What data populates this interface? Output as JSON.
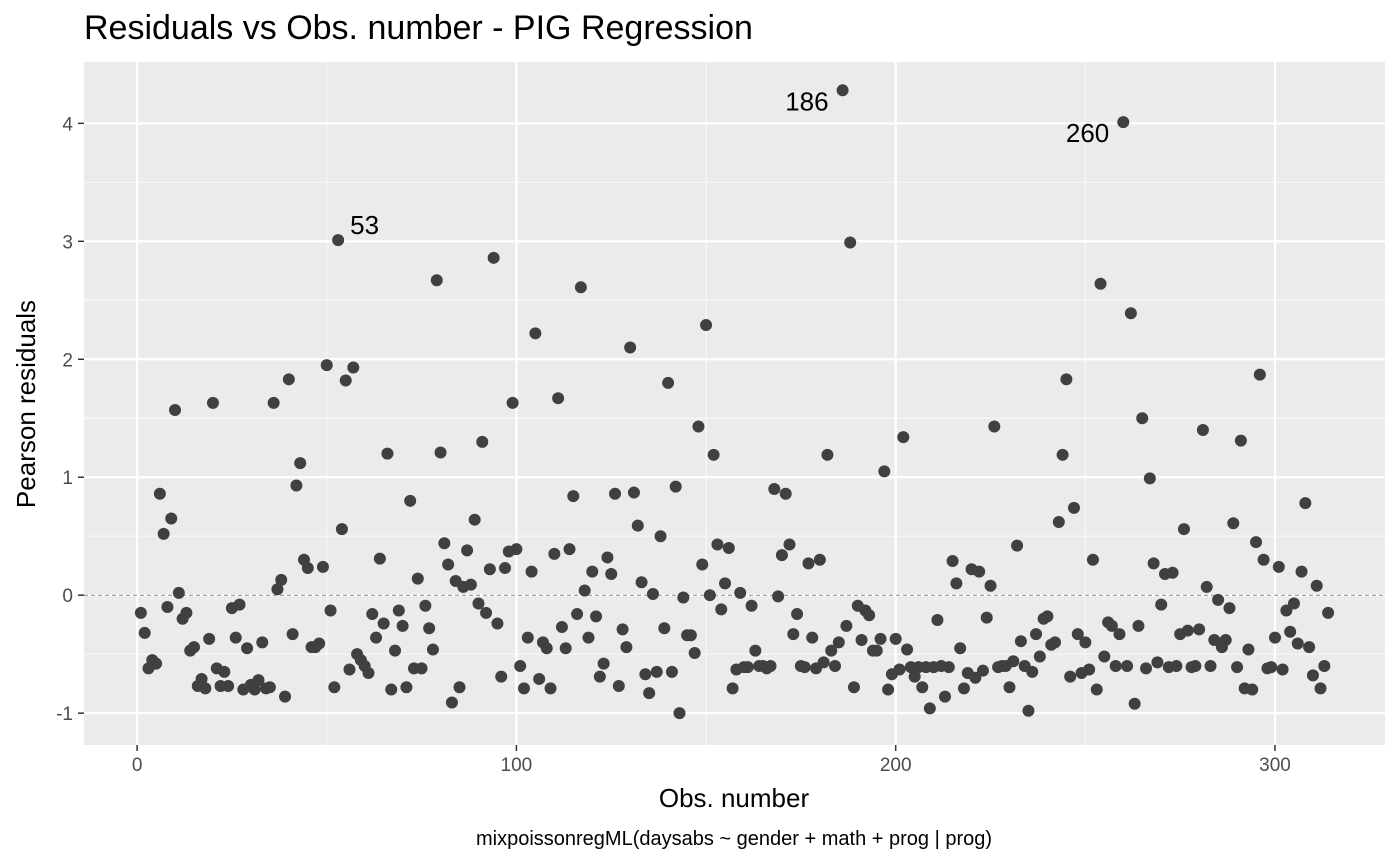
{
  "chart_data": {
    "type": "scatter",
    "title": "Residuals vs Obs. number - PIG Regression",
    "xlabel": "Obs. number",
    "ylabel": "Pearson residuals",
    "caption": "mixpoissonregML(daysabs ~ gender + math + prog | prog)",
    "xlim": [
      -14,
      329
    ],
    "ylim": [
      -1.27,
      4.52
    ],
    "x_ticks": [
      0,
      100,
      200,
      300
    ],
    "x_tick_labels": [
      "0",
      "100",
      "200",
      "300"
    ],
    "y_ticks": [
      -1,
      0,
      1,
      2,
      3,
      4
    ],
    "y_tick_labels": [
      "-1",
      "0",
      "1",
      "2",
      "3",
      "4"
    ],
    "reference_line_y": 0,
    "grid": true,
    "colors": {
      "panel": "#ebebeb",
      "grid_major": "#ffffff",
      "grid_minor": "#f7f7f7",
      "point": "#404040",
      "reference_line": "#888888"
    },
    "annotations": [
      {
        "label": "53",
        "x": 53,
        "y": 3.01
      },
      {
        "label": "186",
        "x": 186,
        "y": 4.28
      },
      {
        "label": "260",
        "x": 260,
        "y": 4.01
      }
    ],
    "points": [
      [
        1,
        -0.15
      ],
      [
        2,
        -0.32
      ],
      [
        3,
        -0.62
      ],
      [
        4,
        -0.55
      ],
      [
        5,
        -0.58
      ],
      [
        6,
        0.86
      ],
      [
        7,
        0.52
      ],
      [
        8,
        -0.1
      ],
      [
        9,
        0.65
      ],
      [
        10,
        1.57
      ],
      [
        11,
        0.02
      ],
      [
        12,
        -0.2
      ],
      [
        13,
        -0.15
      ],
      [
        14,
        -0.47
      ],
      [
        15,
        -0.44
      ],
      [
        16,
        -0.77
      ],
      [
        17,
        -0.71
      ],
      [
        18,
        -0.79
      ],
      [
        19,
        -0.37
      ],
      [
        20,
        1.63
      ],
      [
        21,
        -0.62
      ],
      [
        22,
        -0.77
      ],
      [
        23,
        -0.65
      ],
      [
        24,
        -0.77
      ],
      [
        25,
        -0.11
      ],
      [
        26,
        -0.36
      ],
      [
        27,
        -0.08
      ],
      [
        28,
        -0.8
      ],
      [
        29,
        -0.45
      ],
      [
        30,
        -0.76
      ],
      [
        31,
        -0.8
      ],
      [
        32,
        -0.72
      ],
      [
        33,
        -0.4
      ],
      [
        34,
        -0.79
      ],
      [
        35,
        -0.78
      ],
      [
        36,
        1.63
      ],
      [
        37,
        0.05
      ],
      [
        38,
        0.13
      ],
      [
        39,
        -0.86
      ],
      [
        40,
        1.83
      ],
      [
        41,
        -0.33
      ],
      [
        42,
        0.93
      ],
      [
        43,
        1.12
      ],
      [
        44,
        0.3
      ],
      [
        45,
        0.23
      ],
      [
        46,
        -0.44
      ],
      [
        47,
        -0.44
      ],
      [
        48,
        -0.41
      ],
      [
        49,
        0.24
      ],
      [
        50,
        1.95
      ],
      [
        51,
        -0.13
      ],
      [
        52,
        -0.78
      ],
      [
        53,
        3.01
      ],
      [
        54,
        0.56
      ],
      [
        55,
        1.82
      ],
      [
        56,
        -0.63
      ],
      [
        57,
        1.93
      ],
      [
        58,
        -0.5
      ],
      [
        59,
        -0.55
      ],
      [
        60,
        -0.6
      ],
      [
        61,
        -0.66
      ],
      [
        62,
        -0.16
      ],
      [
        63,
        -0.36
      ],
      [
        64,
        0.31
      ],
      [
        65,
        -0.24
      ],
      [
        66,
        1.2
      ],
      [
        67,
        -0.8
      ],
      [
        68,
        -0.47
      ],
      [
        69,
        -0.13
      ],
      [
        70,
        -0.26
      ],
      [
        71,
        -0.78
      ],
      [
        72,
        0.8
      ],
      [
        73,
        -0.62
      ],
      [
        74,
        0.14
      ],
      [
        75,
        -0.62
      ],
      [
        76,
        -0.09
      ],
      [
        77,
        -0.28
      ],
      [
        78,
        -0.46
      ],
      [
        79,
        2.67
      ],
      [
        80,
        1.21
      ],
      [
        81,
        0.44
      ],
      [
        82,
        0.26
      ],
      [
        83,
        -0.91
      ],
      [
        84,
        0.12
      ],
      [
        85,
        -0.78
      ],
      [
        86,
        0.07
      ],
      [
        87,
        0.38
      ],
      [
        88,
        0.09
      ],
      [
        89,
        0.64
      ],
      [
        90,
        -0.07
      ],
      [
        91,
        1.3
      ],
      [
        92,
        -0.15
      ],
      [
        93,
        0.22
      ],
      [
        94,
        2.86
      ],
      [
        95,
        -0.24
      ],
      [
        96,
        -0.69
      ],
      [
        97,
        0.23
      ],
      [
        98,
        0.37
      ],
      [
        99,
        1.63
      ],
      [
        100,
        0.39
      ],
      [
        101,
        -0.6
      ],
      [
        102,
        -0.79
      ],
      [
        103,
        -0.36
      ],
      [
        104,
        0.2
      ],
      [
        105,
        2.22
      ],
      [
        106,
        -0.71
      ],
      [
        107,
        -0.4
      ],
      [
        108,
        -0.45
      ],
      [
        109,
        -0.79
      ],
      [
        110,
        0.35
      ],
      [
        111,
        1.67
      ],
      [
        112,
        -0.27
      ],
      [
        113,
        -0.45
      ],
      [
        114,
        0.39
      ],
      [
        115,
        0.84
      ],
      [
        116,
        -0.16
      ],
      [
        117,
        2.61
      ],
      [
        118,
        0.04
      ],
      [
        119,
        -0.36
      ],
      [
        120,
        0.2
      ],
      [
        121,
        -0.18
      ],
      [
        122,
        -0.69
      ],
      [
        123,
        -0.58
      ],
      [
        124,
        0.32
      ],
      [
        125,
        0.18
      ],
      [
        126,
        0.86
      ],
      [
        127,
        -0.77
      ],
      [
        128,
        -0.29
      ],
      [
        129,
        -0.44
      ],
      [
        130,
        2.1
      ],
      [
        131,
        0.87
      ],
      [
        132,
        0.59
      ],
      [
        133,
        0.11
      ],
      [
        134,
        -0.67
      ],
      [
        135,
        -0.83
      ],
      [
        136,
        0.01
      ],
      [
        137,
        -0.65
      ],
      [
        138,
        0.5
      ],
      [
        139,
        -0.28
      ],
      [
        140,
        1.8
      ],
      [
        141,
        -0.65
      ],
      [
        142,
        0.92
      ],
      [
        143,
        -1.0
      ],
      [
        144,
        -0.02
      ],
      [
        145,
        -0.34
      ],
      [
        146,
        -0.34
      ],
      [
        147,
        -0.49
      ],
      [
        148,
        1.43
      ],
      [
        149,
        0.26
      ],
      [
        150,
        2.29
      ],
      [
        151,
        0.0
      ],
      [
        152,
        1.19
      ],
      [
        153,
        0.43
      ],
      [
        154,
        -0.12
      ],
      [
        155,
        0.1
      ],
      [
        156,
        0.4
      ],
      [
        157,
        -0.79
      ],
      [
        158,
        -0.63
      ],
      [
        159,
        0.02
      ],
      [
        160,
        -0.61
      ],
      [
        161,
        -0.61
      ],
      [
        162,
        -0.09
      ],
      [
        163,
        -0.47
      ],
      [
        164,
        -0.6
      ],
      [
        165,
        -0.6
      ],
      [
        166,
        -0.62
      ],
      [
        167,
        -0.6
      ],
      [
        168,
        0.9
      ],
      [
        169,
        -0.01
      ],
      [
        170,
        0.34
      ],
      [
        171,
        0.86
      ],
      [
        172,
        0.43
      ],
      [
        173,
        -0.33
      ],
      [
        174,
        -0.16
      ],
      [
        175,
        -0.6
      ],
      [
        176,
        -0.61
      ],
      [
        177,
        0.27
      ],
      [
        178,
        -0.36
      ],
      [
        179,
        -0.62
      ],
      [
        180,
        0.3
      ],
      [
        181,
        -0.57
      ],
      [
        182,
        1.19
      ],
      [
        183,
        -0.47
      ],
      [
        184,
        -0.6
      ],
      [
        185,
        -0.4
      ],
      [
        186,
        4.28
      ],
      [
        187,
        -0.26
      ],
      [
        188,
        2.99
      ],
      [
        189,
        -0.78
      ],
      [
        190,
        -0.09
      ],
      [
        191,
        -0.38
      ],
      [
        192,
        -0.13
      ],
      [
        193,
        -0.17
      ],
      [
        194,
        -0.47
      ],
      [
        195,
        -0.47
      ],
      [
        196,
        -0.37
      ],
      [
        197,
        1.05
      ],
      [
        198,
        -0.8
      ],
      [
        199,
        -0.67
      ],
      [
        200,
        -0.37
      ],
      [
        201,
        -0.63
      ],
      [
        202,
        1.34
      ],
      [
        203,
        -0.46
      ],
      [
        204,
        -0.61
      ],
      [
        205,
        -0.69
      ],
      [
        206,
        -0.61
      ],
      [
        207,
        -0.78
      ],
      [
        208,
        -0.61
      ],
      [
        209,
        -0.96
      ],
      [
        210,
        -0.61
      ],
      [
        211,
        -0.21
      ],
      [
        212,
        -0.6
      ],
      [
        213,
        -0.86
      ],
      [
        214,
        -0.61
      ],
      [
        215,
        0.29
      ],
      [
        216,
        0.1
      ],
      [
        217,
        -0.45
      ],
      [
        218,
        -0.79
      ],
      [
        219,
        -0.66
      ],
      [
        220,
        0.22
      ],
      [
        221,
        -0.7
      ],
      [
        222,
        0.2
      ],
      [
        223,
        -0.64
      ],
      [
        224,
        -0.19
      ],
      [
        225,
        0.08
      ],
      [
        226,
        1.43
      ],
      [
        227,
        -0.61
      ],
      [
        228,
        -0.6
      ],
      [
        229,
        -0.6
      ],
      [
        230,
        -0.78
      ],
      [
        231,
        -0.56
      ],
      [
        232,
        0.42
      ],
      [
        233,
        -0.39
      ],
      [
        234,
        -0.6
      ],
      [
        235,
        -0.98
      ],
      [
        236,
        -0.65
      ],
      [
        237,
        -0.33
      ],
      [
        238,
        -0.52
      ],
      [
        239,
        -0.2
      ],
      [
        240,
        -0.18
      ],
      [
        241,
        -0.42
      ],
      [
        242,
        -0.4
      ],
      [
        243,
        0.62
      ],
      [
        244,
        1.19
      ],
      [
        245,
        1.83
      ],
      [
        246,
        -0.69
      ],
      [
        247,
        0.74
      ],
      [
        248,
        -0.33
      ],
      [
        249,
        -0.66
      ],
      [
        250,
        -0.4
      ],
      [
        251,
        -0.63
      ],
      [
        252,
        0.3
      ],
      [
        253,
        -0.8
      ],
      [
        254,
        2.64
      ],
      [
        255,
        -0.52
      ],
      [
        256,
        -0.23
      ],
      [
        257,
        -0.26
      ],
      [
        258,
        -0.6
      ],
      [
        259,
        -0.33
      ],
      [
        260,
        4.01
      ],
      [
        261,
        -0.6
      ],
      [
        262,
        2.39
      ],
      [
        263,
        -0.92
      ],
      [
        264,
        -0.26
      ],
      [
        265,
        1.5
      ],
      [
        266,
        -0.62
      ],
      [
        267,
        0.99
      ],
      [
        268,
        0.27
      ],
      [
        269,
        -0.57
      ],
      [
        270,
        -0.08
      ],
      [
        271,
        0.18
      ],
      [
        272,
        -0.61
      ],
      [
        273,
        0.19
      ],
      [
        274,
        -0.6
      ],
      [
        275,
        -0.33
      ],
      [
        276,
        0.56
      ],
      [
        277,
        -0.3
      ],
      [
        278,
        -0.61
      ],
      [
        279,
        -0.6
      ],
      [
        280,
        -0.29
      ],
      [
        281,
        1.4
      ],
      [
        282,
        0.07
      ],
      [
        283,
        -0.6
      ],
      [
        284,
        -0.38
      ],
      [
        285,
        -0.04
      ],
      [
        286,
        -0.44
      ],
      [
        287,
        -0.38
      ],
      [
        288,
        -0.11
      ],
      [
        289,
        0.61
      ],
      [
        290,
        -0.61
      ],
      [
        291,
        1.31
      ],
      [
        292,
        -0.79
      ],
      [
        293,
        -0.46
      ],
      [
        294,
        -0.8
      ],
      [
        295,
        0.45
      ],
      [
        296,
        1.87
      ],
      [
        297,
        0.3
      ],
      [
        298,
        -0.62
      ],
      [
        299,
        -0.61
      ],
      [
        300,
        -0.36
      ],
      [
        301,
        0.24
      ],
      [
        302,
        -0.63
      ],
      [
        303,
        -0.13
      ],
      [
        304,
        -0.31
      ],
      [
        305,
        -0.07
      ],
      [
        306,
        -0.41
      ],
      [
        307,
        0.2
      ],
      [
        308,
        0.78
      ],
      [
        309,
        -0.44
      ],
      [
        310,
        -0.68
      ],
      [
        311,
        0.08
      ],
      [
        312,
        -0.79
      ],
      [
        313,
        -0.6
      ],
      [
        314,
        -0.15
      ]
    ]
  }
}
